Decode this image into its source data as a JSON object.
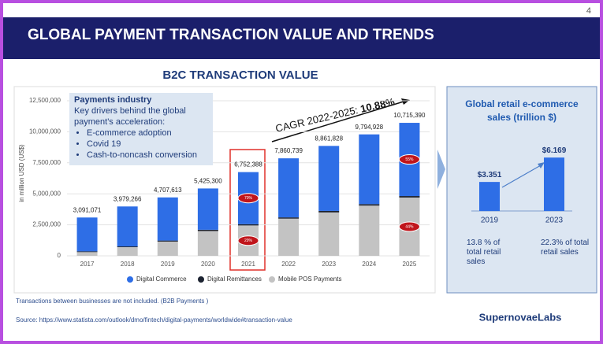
{
  "header": {
    "title": "GLOBAL PAYMENT TRANSACTION VALUE AND TRENDS",
    "page_number": "4"
  },
  "chart_data": [
    {
      "type": "stacked-bar",
      "title": "B2C TRANSACTION VALUE",
      "ylabel": "in million USD (US$)",
      "categories": [
        "2017",
        "2018",
        "2019",
        "2020",
        "2021",
        "2022",
        "2023",
        "2024",
        "2025"
      ],
      "series": [
        {
          "name": "Digital Commerce",
          "color": "#2e6ee6",
          "values": [
            2730000,
            3220000,
            3480000,
            3330000,
            4200000,
            4760000,
            5240000,
            5620000,
            5900000
          ],
          "share_labels": [
            null,
            null,
            null,
            null,
            "70%",
            null,
            null,
            null,
            "55%"
          ]
        },
        {
          "name": "Digital Remittances",
          "color": "#1c2331",
          "values": [
            60000,
            60000,
            80000,
            100000,
            100000,
            100000,
            120000,
            120000,
            120000
          ]
        },
        {
          "name": "Mobile POS Payments",
          "color": "#c3c3c3",
          "values": [
            300000,
            700000,
            1150000,
            2000000,
            2450000,
            3000000,
            3500000,
            4050000,
            4700000
          ],
          "share_labels": [
            null,
            null,
            null,
            null,
            "29%",
            null,
            null,
            null,
            "44%"
          ]
        }
      ],
      "total_labels": [
        "3,091,071",
        "3,979,266",
        "4,707,613",
        "5,425,300",
        "6,752,388",
        "7,860,739",
        "8,861,828",
        "9,794,928",
        "10,715,390"
      ],
      "ylim": [
        0,
        12500000
      ],
      "yticks": [
        0,
        {
          "value": 2500000,
          "label": "2,500,000"
        },
        {
          "value": 5000000,
          "label": "5,000,000"
        },
        {
          "value": 7500000,
          "label": "7,500,000"
        },
        {
          "value": 10000000,
          "label": "10,000,000"
        },
        {
          "value": 12500000,
          "label": "12,500,000"
        }
      ],
      "grid": true,
      "legend": "bottom",
      "cagr": {
        "text": "CAGR 2022-2025:",
        "value": "10.88%"
      },
      "textbox": {
        "title": "Payments industry",
        "text": "Key drivers behind the global payment's acceleration:",
        "bullets": [
          "E-commerce adoption",
          "Covid 19",
          "Cash-to-noncash conversion"
        ]
      }
    },
    {
      "type": "bar",
      "title": "Global retail e-commerce sales (trillion $)",
      "categories": [
        "2019",
        "2023"
      ],
      "values": [
        3.351,
        6.169
      ],
      "value_labels": [
        "$3.351",
        "$6.169"
      ],
      "color": "#2e6ee6",
      "notes": [
        "13.8 % of total retail sales",
        "22.3% of total retail sales"
      ]
    }
  ],
  "footer": {
    "note": "Transactions between businesses are not included. (B2B Payments )",
    "source": "Source: https://www.statista.com/outlook/dmo/fintech/digital-payments/worldwide#transaction-value",
    "logo": "SupernovaeLabs"
  }
}
